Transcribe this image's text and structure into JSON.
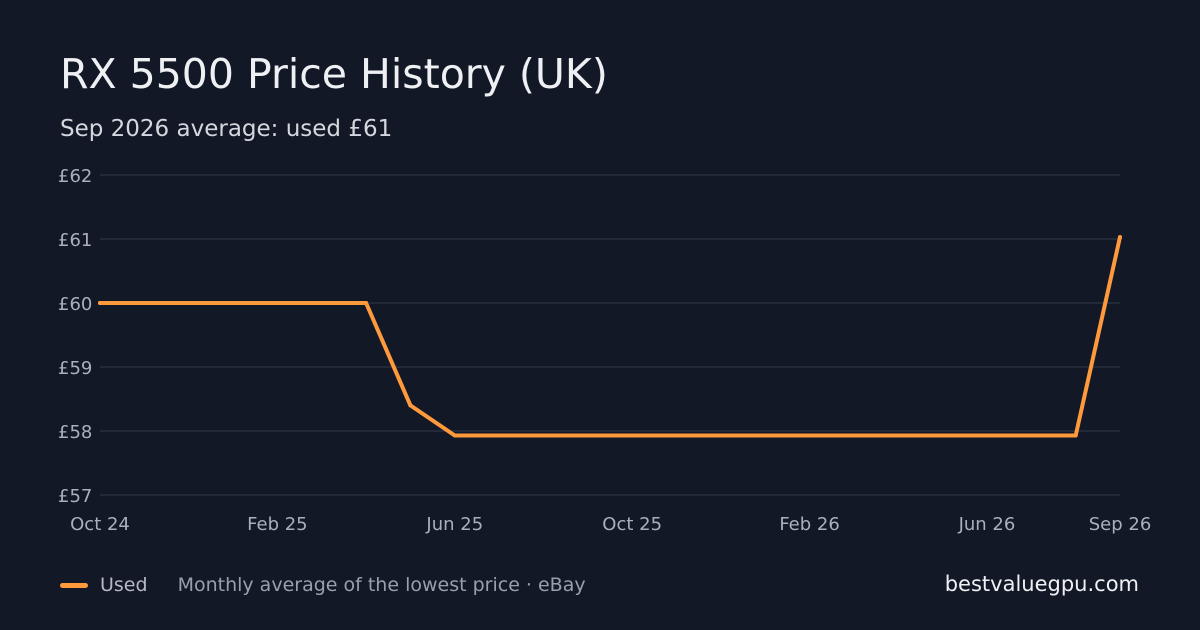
{
  "header": {
    "title": "RX 5500 Price History (UK)",
    "subtitle": "Sep 2026 average: used £61"
  },
  "footer": {
    "legend_label": "Used",
    "source_note": "Monthly average of the lowest price · eBay",
    "brand": "bestvaluegpu.com"
  },
  "colors": {
    "background": "#121826",
    "line": "#ff9a3c",
    "grid": "#283040",
    "tick_text": "#aab0bb"
  },
  "chart_data": {
    "type": "line",
    "title": "RX 5500 Price History (UK)",
    "subtitle": "Sep 2026 average: used £61",
    "x_tick_labels": [
      "Oct 24",
      "Feb 25",
      "Jun 25",
      "Oct 25",
      "Feb 26",
      "Jun 26",
      "Sep 26"
    ],
    "x_tick_months": [
      "2024-10",
      "2025-02",
      "2025-06",
      "2025-10",
      "2026-02",
      "2026-06",
      "2026-09"
    ],
    "y_ticks": [
      "£62",
      "£61",
      "£60",
      "£59",
      "£58",
      "£57"
    ],
    "y_tick_values": [
      62,
      61,
      60,
      59,
      58,
      57
    ],
    "ylim": [
      57,
      62
    ],
    "xlim": [
      "2024-10",
      "2026-09"
    ],
    "grid": true,
    "legend_placement": "bottom-left",
    "series": [
      {
        "name": "Used",
        "color": "#ff9a3c",
        "points": [
          {
            "x": "2024-10",
            "y": 60
          },
          {
            "x": "2025-04",
            "y": 60
          },
          {
            "x": "2025-05",
            "y": 58.4
          },
          {
            "x": "2025-06",
            "y": 57.93
          },
          {
            "x": "2026-08",
            "y": 57.93
          },
          {
            "x": "2026-09",
            "y": 61.03
          }
        ]
      }
    ]
  }
}
